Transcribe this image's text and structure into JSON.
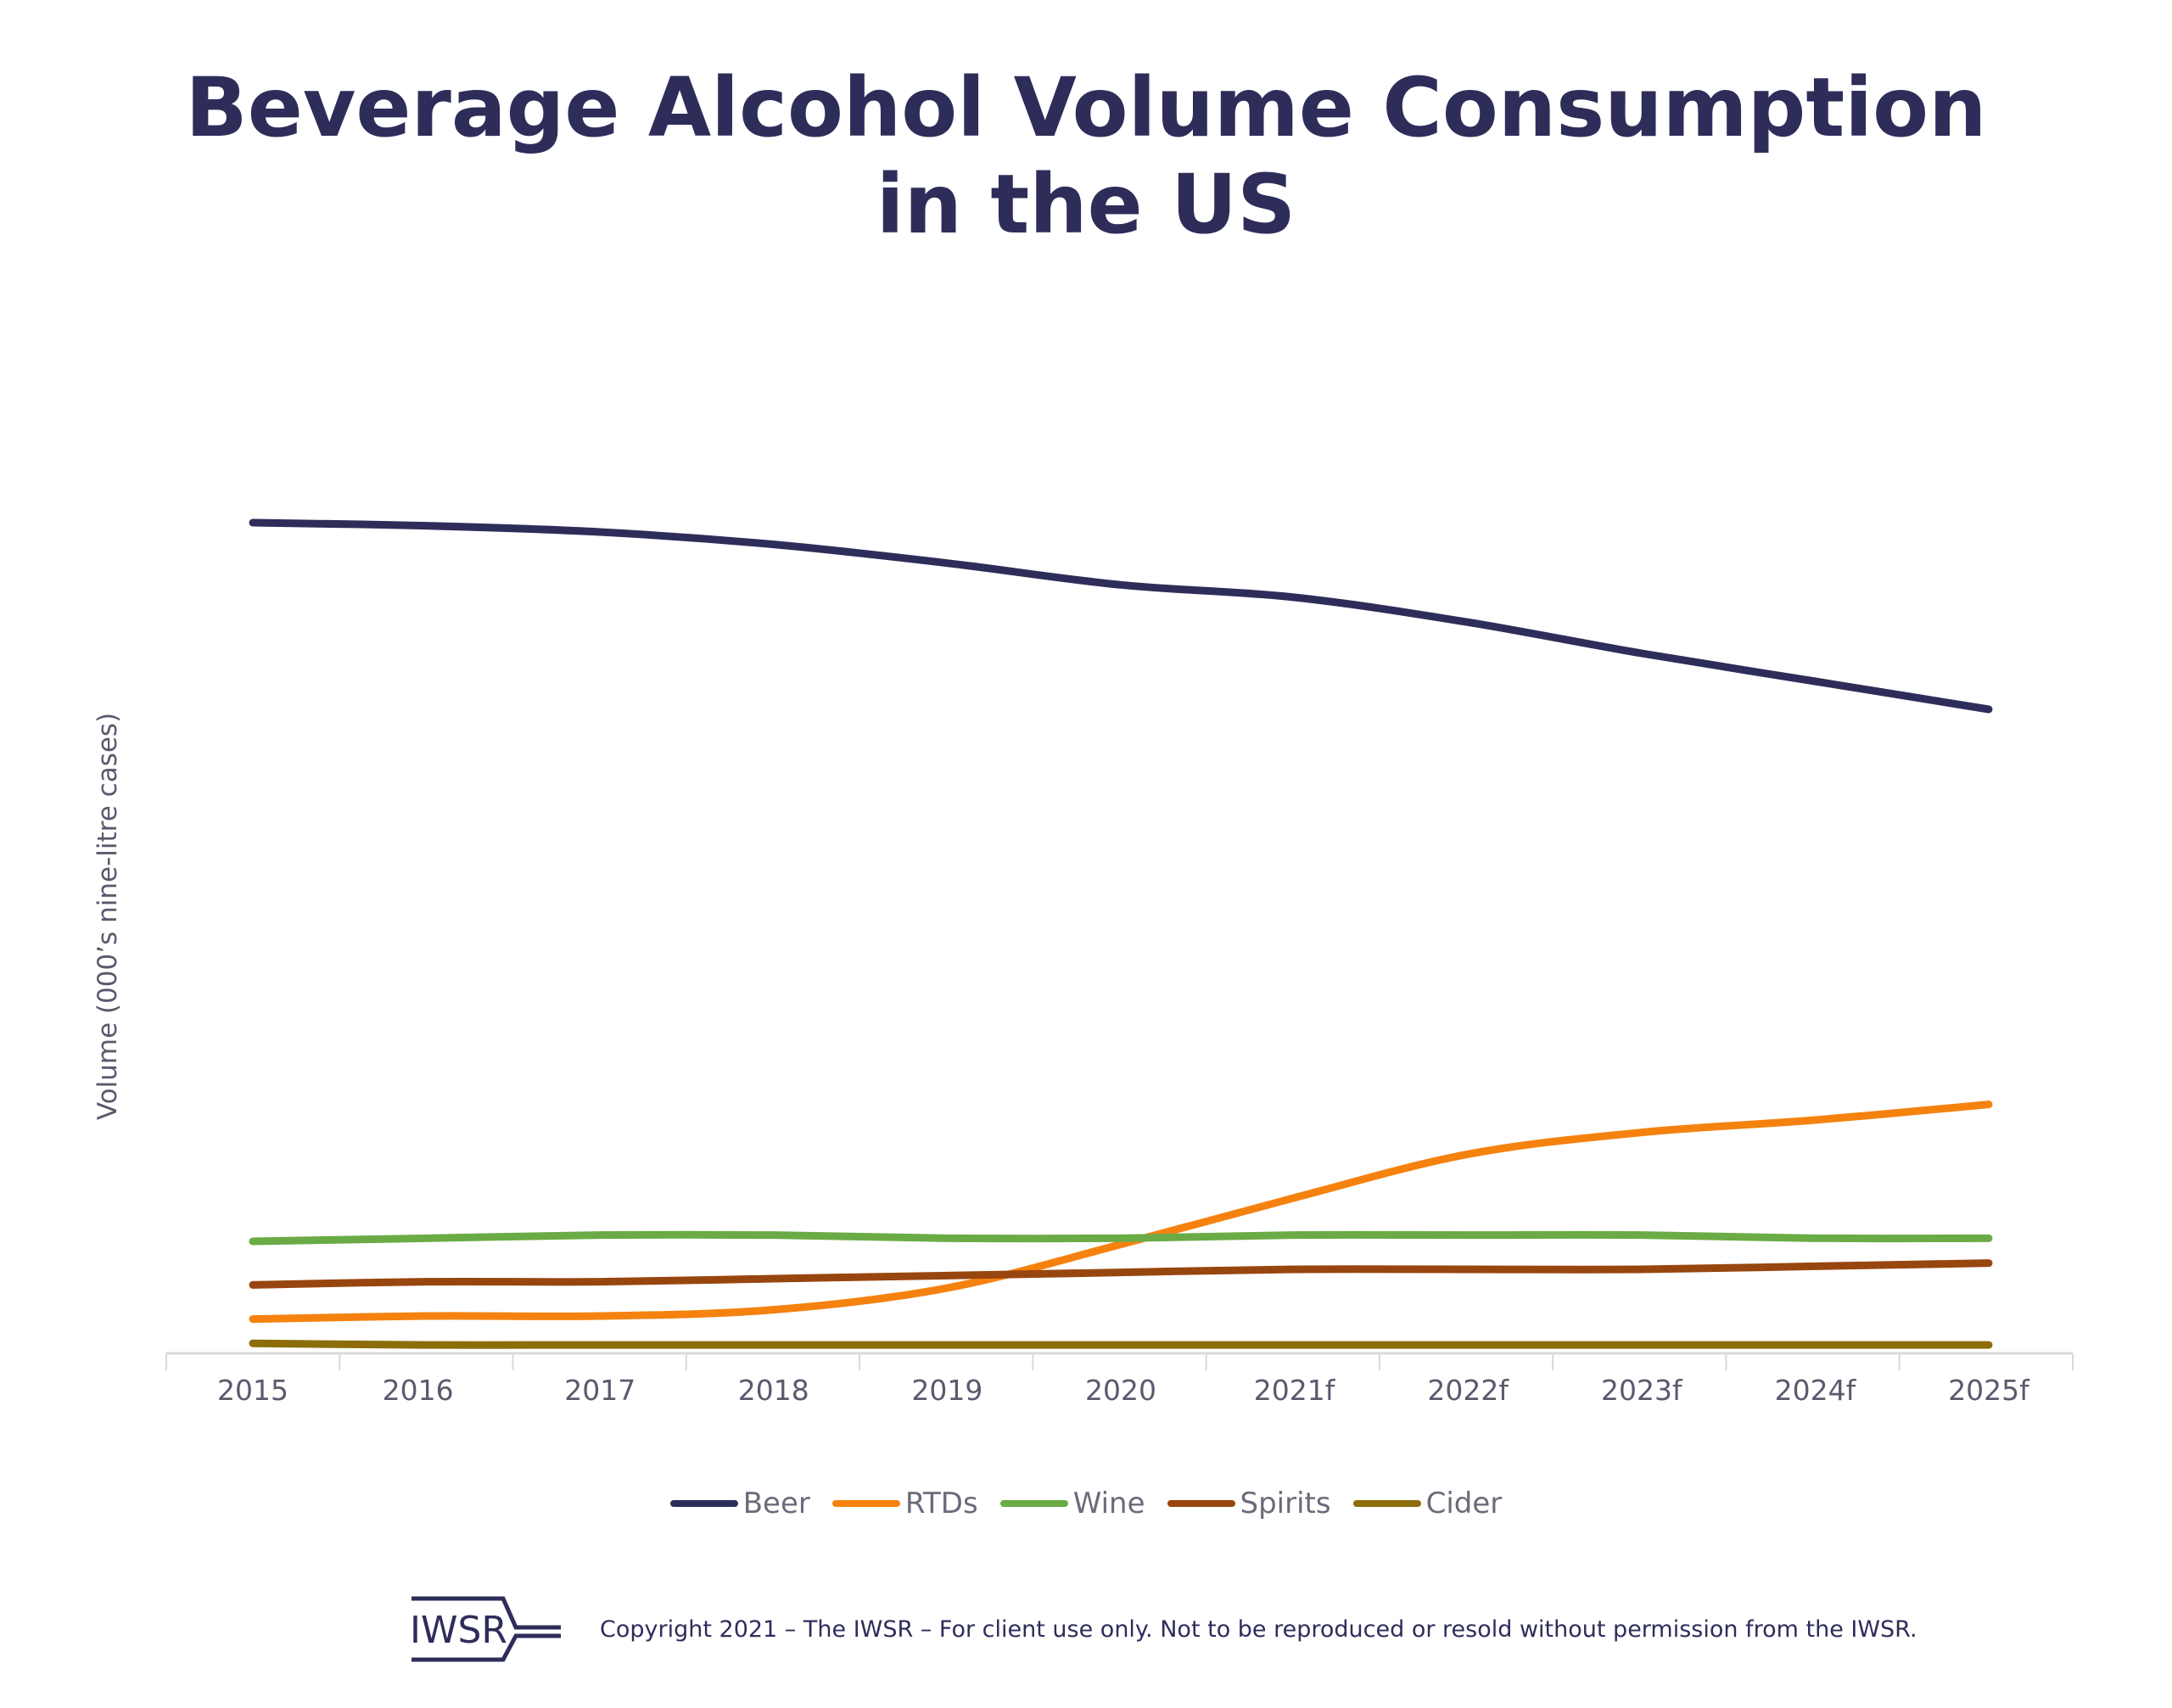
{
  "title_lines": [
    "Beverage Alcohol Volume Consumption",
    "in the US"
  ],
  "footer": {
    "logo": "IWSR",
    "copyright": "Copyright 2021 – The IWSR – For client use only. Not to be reproduced or resold without permission from the IWSR."
  },
  "chart_data": {
    "type": "line",
    "title": "Beverage Alcohol Volume Consumption in the US",
    "xlabel": "",
    "ylabel": "Volume (000’s nine-litre cases)",
    "categories": [
      "2015",
      "2016",
      "2017",
      "2018",
      "2019",
      "2020",
      "2021f",
      "2022f",
      "2023f",
      "2024f",
      "2025f"
    ],
    "ylim": [
      0,
      3300000
    ],
    "grid": false,
    "y_tick_labels_shown": false,
    "legend_position": "bottom",
    "series": [
      {
        "name": "Beer",
        "color": "#2e2d5a",
        "values": [
          2670000,
          2660000,
          2640000,
          2600000,
          2540000,
          2470000,
          2430000,
          2350000,
          2250000,
          2160000,
          2070000
        ]
      },
      {
        "name": "RTDs",
        "color": "#f5820f",
        "values": [
          110000,
          120000,
          120000,
          140000,
          210000,
          350000,
          500000,
          640000,
          710000,
          750000,
          800000
        ]
      },
      {
        "name": "Wine",
        "color": "#6aab46",
        "values": [
          360000,
          370000,
          380000,
          380000,
          370000,
          370000,
          380000,
          380000,
          380000,
          370000,
          370000
        ]
      },
      {
        "name": "Spirits",
        "color": "#98460f",
        "values": [
          220000,
          230000,
          230000,
          240000,
          250000,
          260000,
          270000,
          270000,
          270000,
          280000,
          290000
        ]
      },
      {
        "name": "Cider",
        "color": "#8c6d0a",
        "values": [
          32000,
          27000,
          27000,
          27000,
          27000,
          27000,
          27000,
          27000,
          27000,
          27000,
          27000
        ]
      }
    ]
  }
}
